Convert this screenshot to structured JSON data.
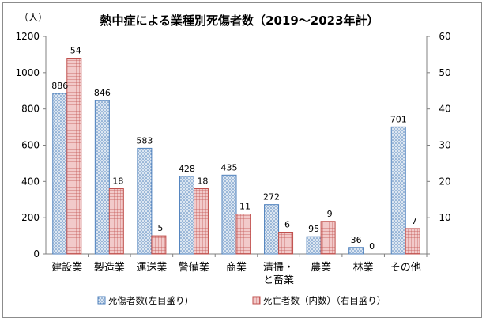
{
  "chart_data": {
    "type": "bar",
    "title": "熱中症による業種別死傷者数（2019～2023年計）",
    "left_axis_unit": "（人）",
    "categories": [
      [
        "建設業"
      ],
      [
        "製造業"
      ],
      [
        "運送業"
      ],
      [
        "警備業"
      ],
      [
        "商業"
      ],
      [
        "清掃・",
        "と畜業"
      ],
      [
        "農業"
      ],
      [
        "林業"
      ],
      [
        "その他"
      ]
    ],
    "series": [
      {
        "name": "死傷者数(左目盛り)",
        "axis": "left",
        "values": [
          886,
          846,
          583,
          428,
          435,
          272,
          95,
          36,
          701
        ],
        "fill": "#dce6f1",
        "stroke": "#4f81bd",
        "pattern": "dots"
      },
      {
        "name": "死亡者数（内数）（右目盛り）",
        "axis": "right",
        "values": [
          54,
          18,
          5,
          18,
          11,
          6,
          9,
          0,
          7
        ],
        "fill": "#f2c4c4",
        "stroke": "#c0504d",
        "pattern": "grid"
      }
    ],
    "y_left": {
      "min": 0,
      "max": 1200,
      "step": 200
    },
    "y_right": {
      "min": 0,
      "max": 60,
      "step": 10
    },
    "grid": false,
    "legend_position": "bottom"
  }
}
